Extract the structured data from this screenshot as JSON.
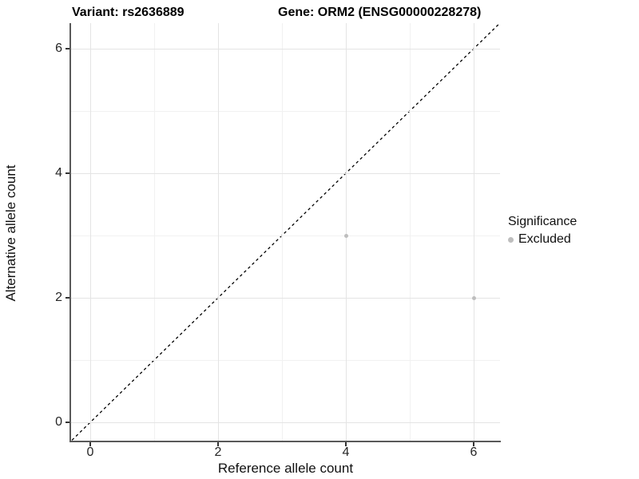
{
  "figure": {
    "title_left": "Variant: rs2636889",
    "title_right": "Gene: ORM2 (ENSG00000228278)"
  },
  "chart_data": {
    "type": "scatter",
    "title": "Variant: rs2636889   Gene: ORM2 (ENSG00000228278)",
    "xlabel": "Reference allele count",
    "ylabel": "Alternative allele count",
    "xlim": [
      -0.3,
      6.46
    ],
    "ylim": [
      -0.3,
      6.41
    ],
    "x_ticks": [
      0,
      2,
      4,
      6
    ],
    "y_ticks": [
      0,
      2,
      4,
      6
    ],
    "x_minor_ticks": [
      1,
      3,
      5
    ],
    "y_minor_ticks": [
      1,
      3,
      5
    ],
    "grid": true,
    "background": "#ffffff",
    "series": [
      {
        "name": "Excluded",
        "marker": "circle",
        "color": "#bebebe",
        "points": [
          {
            "x": 4,
            "y": 3
          },
          {
            "x": 6,
            "y": 2
          }
        ]
      }
    ],
    "reference_line": {
      "type": "identity (y = x)",
      "style": "dashed",
      "color": "#000000"
    },
    "legend": {
      "title": "Significance",
      "position": "right",
      "entries": [
        {
          "label": "Excluded",
          "color": "#bebebe",
          "marker": "circle"
        }
      ]
    }
  },
  "colors": {
    "axis_line": "#595959",
    "tick_mark": "#333333",
    "grid_major": "#e4e4e4",
    "grid_minor": "#f1f1f1",
    "point": "#bebebe",
    "diagonal": "#000000"
  }
}
